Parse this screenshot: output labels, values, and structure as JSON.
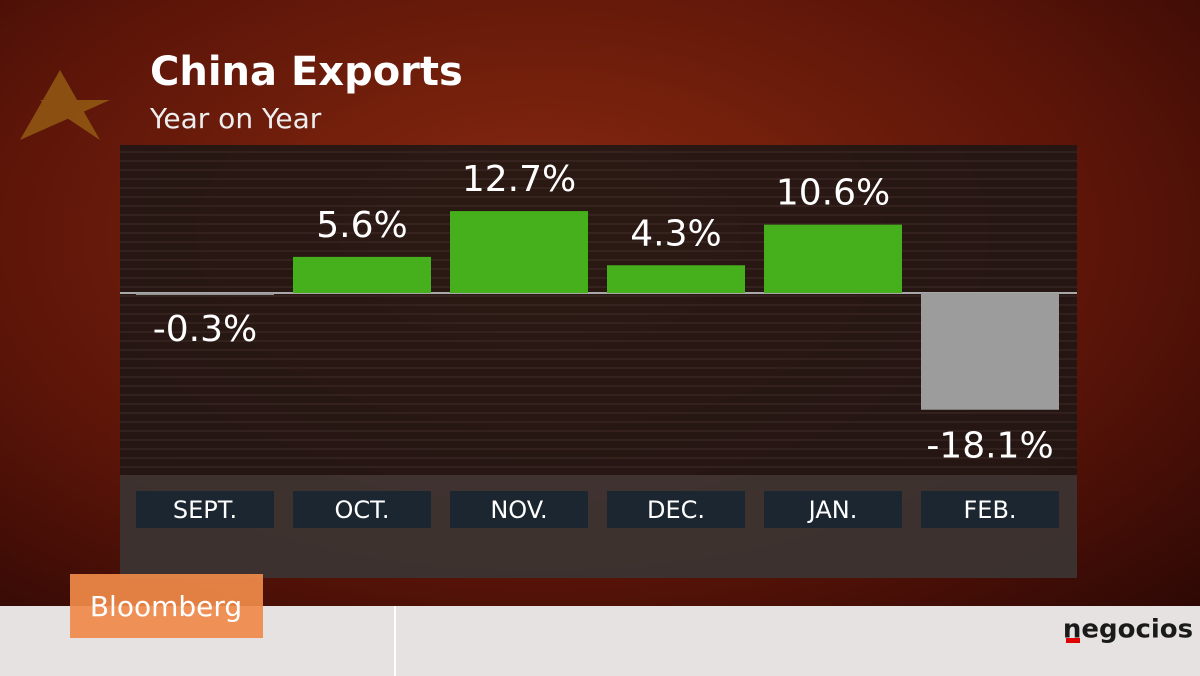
{
  "chart_data": {
    "type": "bar",
    "title": "China Exports",
    "subtitle": "Year on Year",
    "categories": [
      "SEPT.",
      "OCT.",
      "NOV.",
      "DEC.",
      "JAN.",
      "FEB."
    ],
    "values": [
      -0.3,
      5.6,
      12.7,
      4.3,
      10.6,
      -18.1
    ],
    "value_labels": [
      "-0.3%",
      "5.6%",
      "12.7%",
      "4.3%",
      "10.6%",
      "-18.1%"
    ],
    "color": "#45b01b",
    "negative_color": "#9c9c9c"
  },
  "branding": {
    "broadcaster": "Bloomberg",
    "site": "negocios"
  }
}
